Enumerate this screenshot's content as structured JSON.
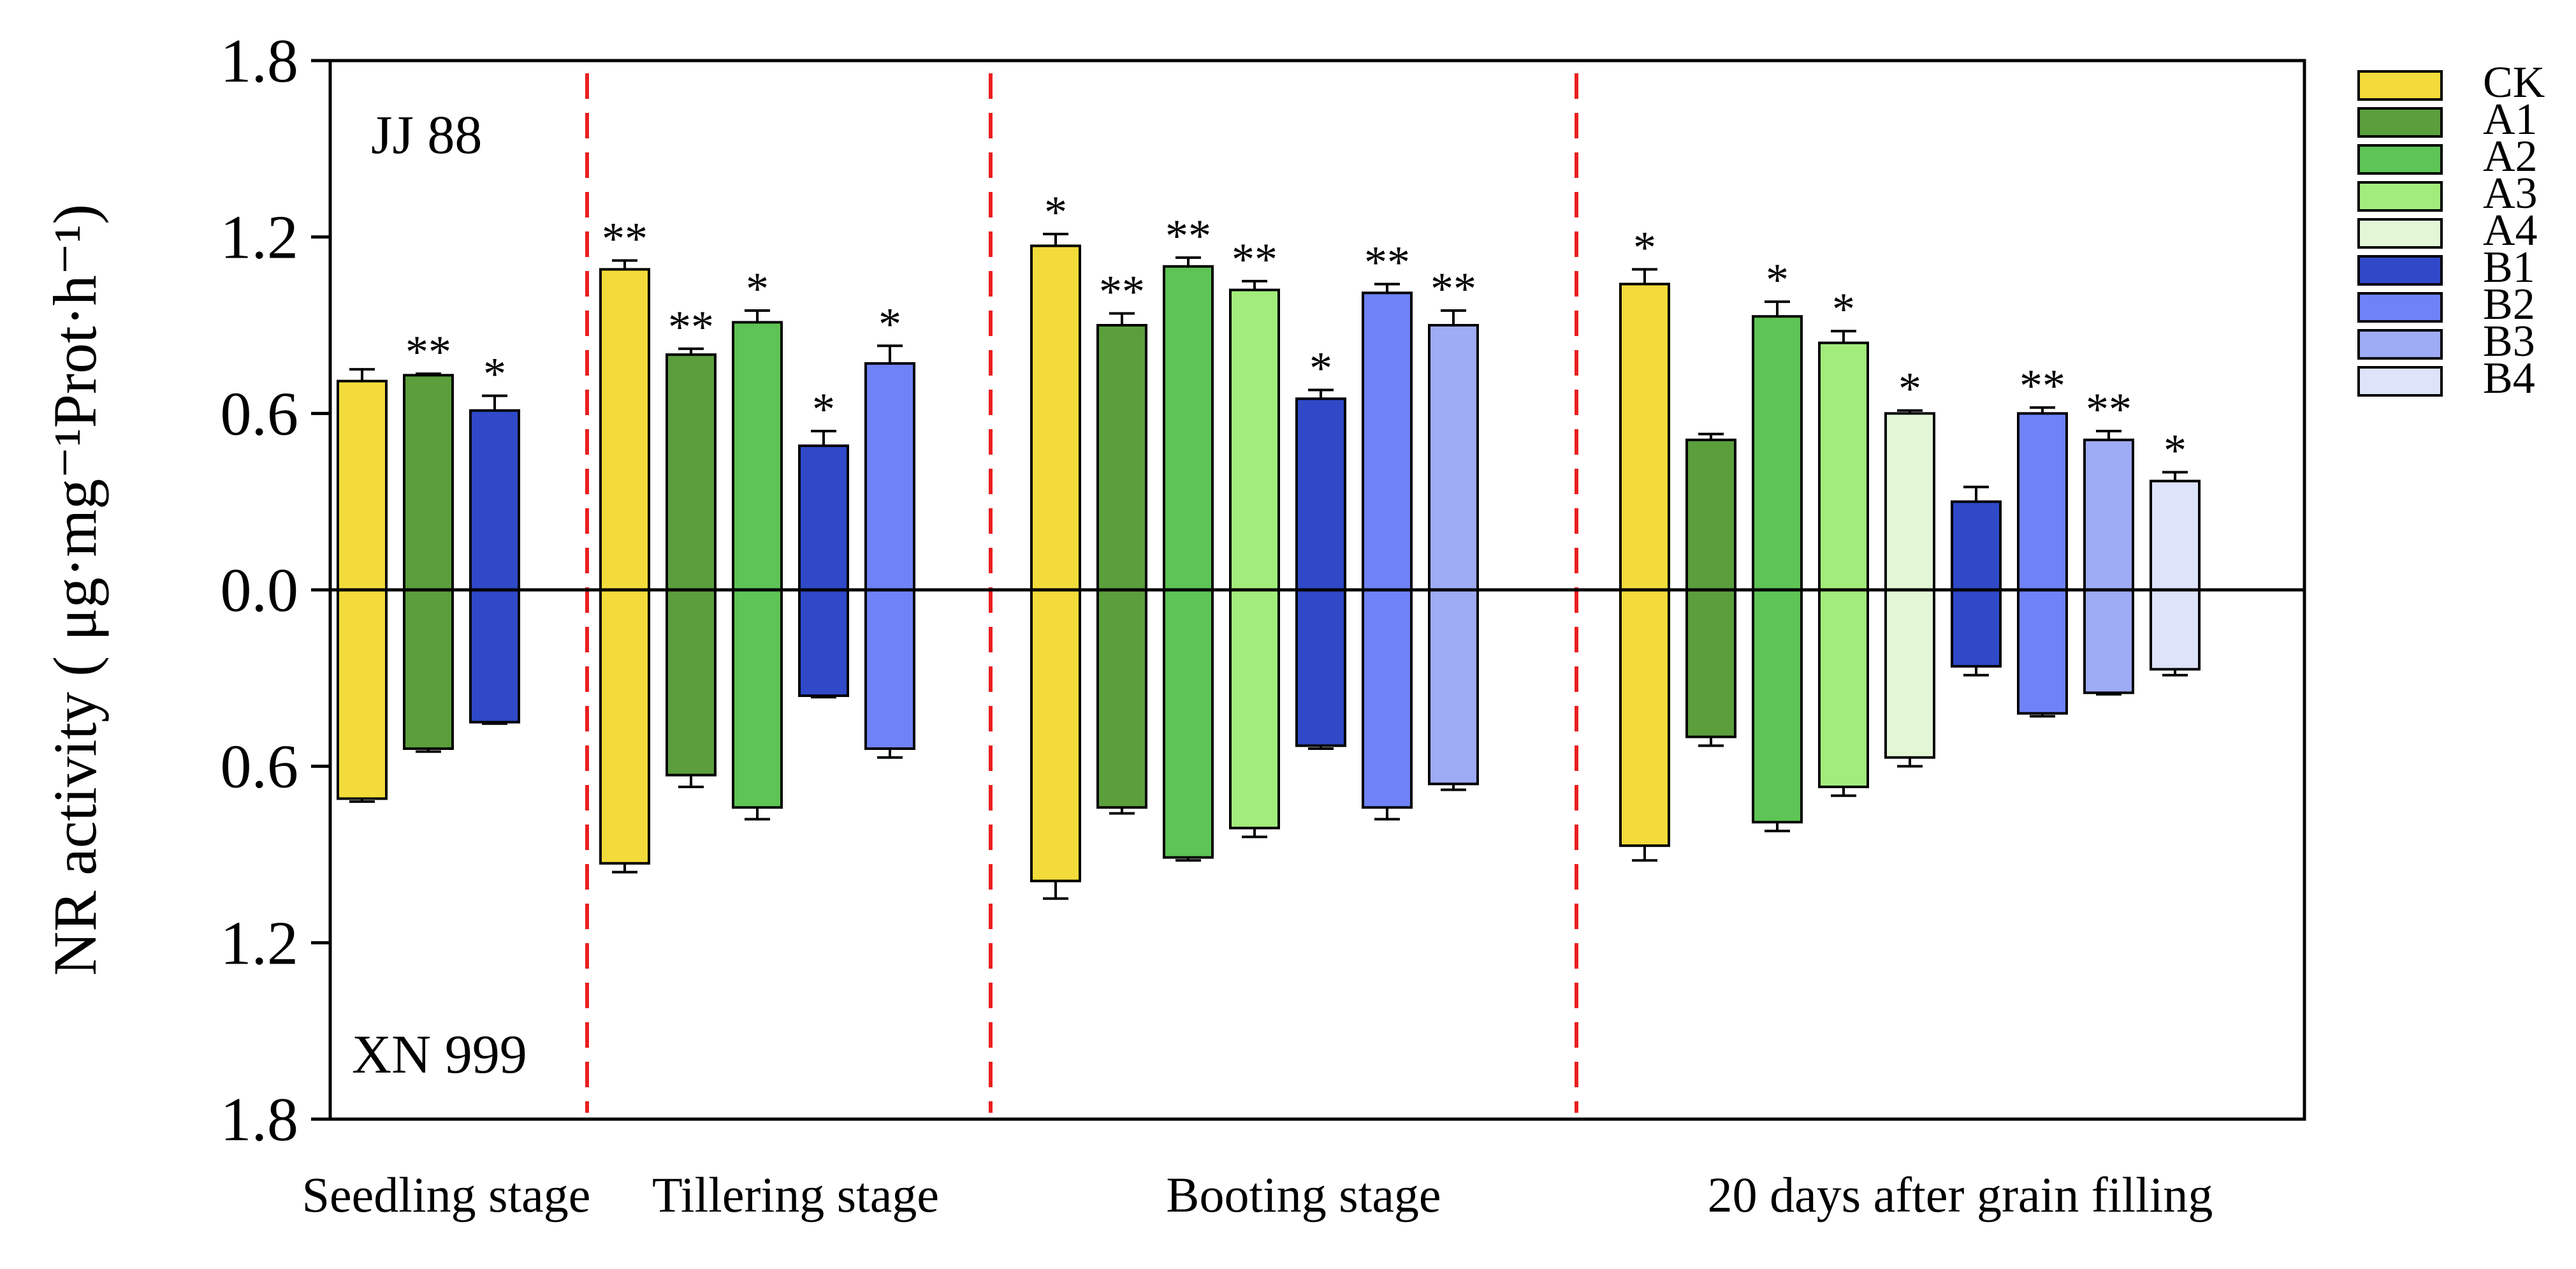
{
  "chart_data": {
    "type": "bar",
    "title": "",
    "ylabel": "NR activity ( μg·mg⁻¹Prot·h⁻¹)",
    "ylim": [
      -1.8,
      1.8
    ],
    "yticks": [
      -1.8,
      -1.2,
      -0.6,
      0.0,
      0.6,
      1.2,
      1.8
    ],
    "ytick_labels": [
      "1.8",
      "1.2",
      "0.6",
      "0.0",
      "0.6",
      "1.2",
      "1.8"
    ],
    "cultivar_top": "JJ 88",
    "cultivar_bottom": "XN 999",
    "legend_position": "right",
    "legend": [
      {
        "name": "CK",
        "color": "#f2db3a"
      },
      {
        "name": "A1",
        "color": "#5b9e3c"
      },
      {
        "name": "A2",
        "color": "#5ec455"
      },
      {
        "name": "A3",
        "color": "#a2ec7c"
      },
      {
        "name": "A4",
        "color": "#e3f7d7"
      },
      {
        "name": "B1",
        "color": "#2f49c8"
      },
      {
        "name": "B2",
        "color": "#6f82f7"
      },
      {
        "name": "B3",
        "color": "#9eabf5"
      },
      {
        "name": "B4",
        "color": "#dde3f8"
      }
    ],
    "stages": [
      {
        "label": "Seedling stage",
        "bars": [
          {
            "treatment": "CK",
            "top": 0.71,
            "top_err": 0.04,
            "top_sig": "",
            "bottom": 0.71,
            "bottom_err": 0.01,
            "bottom_sig": ""
          },
          {
            "treatment": "A1",
            "top": 0.73,
            "top_err": 0.005,
            "top_sig": "**",
            "bottom": 0.54,
            "bottom_err": 0.01,
            "bottom_sig": ""
          },
          {
            "treatment": "B1",
            "top": 0.61,
            "top_err": 0.05,
            "top_sig": "*",
            "bottom": 0.45,
            "bottom_err": 0.005,
            "bottom_sig": ""
          }
        ]
      },
      {
        "label": "Tillering stage",
        "bars": [
          {
            "treatment": "CK",
            "top": 1.09,
            "top_err": 0.03,
            "top_sig": "**",
            "bottom": 0.93,
            "bottom_err": 0.03,
            "bottom_sig": ""
          },
          {
            "treatment": "A1",
            "top": 0.8,
            "top_err": 0.02,
            "top_sig": "**",
            "bottom": 0.63,
            "bottom_err": 0.04,
            "bottom_sig": ""
          },
          {
            "treatment": "A2",
            "top": 0.91,
            "top_err": 0.04,
            "top_sig": "*",
            "bottom": 0.74,
            "bottom_err": 0.04,
            "bottom_sig": ""
          },
          {
            "treatment": "B1",
            "top": 0.49,
            "top_err": 0.05,
            "top_sig": "*",
            "bottom": 0.36,
            "bottom_err": 0.005,
            "bottom_sig": ""
          },
          {
            "treatment": "B2",
            "top": 0.77,
            "top_err": 0.06,
            "top_sig": "*",
            "bottom": 0.54,
            "bottom_err": 0.03,
            "bottom_sig": ""
          }
        ]
      },
      {
        "label": "Booting stage",
        "bars": [
          {
            "treatment": "CK",
            "top": 1.17,
            "top_err": 0.04,
            "top_sig": "*",
            "bottom": 0.99,
            "bottom_err": 0.06,
            "bottom_sig": ""
          },
          {
            "treatment": "A1",
            "top": 0.9,
            "top_err": 0.04,
            "top_sig": "**",
            "bottom": 0.74,
            "bottom_err": 0.02,
            "bottom_sig": ""
          },
          {
            "treatment": "A2",
            "top": 1.1,
            "top_err": 0.03,
            "top_sig": "**",
            "bottom": 0.91,
            "bottom_err": 0.01,
            "bottom_sig": ""
          },
          {
            "treatment": "A3",
            "top": 1.02,
            "top_err": 0.03,
            "top_sig": "**",
            "bottom": 0.81,
            "bottom_err": 0.03,
            "bottom_sig": ""
          },
          {
            "treatment": "B1",
            "top": 0.65,
            "top_err": 0.03,
            "top_sig": "*",
            "bottom": 0.53,
            "bottom_err": 0.01,
            "bottom_sig": ""
          },
          {
            "treatment": "B2",
            "top": 1.01,
            "top_err": 0.03,
            "top_sig": "**",
            "bottom": 0.74,
            "bottom_err": 0.04,
            "bottom_sig": ""
          },
          {
            "treatment": "B3",
            "top": 0.9,
            "top_err": 0.05,
            "top_sig": "**",
            "bottom": 0.66,
            "bottom_err": 0.02,
            "bottom_sig": ""
          }
        ]
      },
      {
        "label": "20 days after grain filling",
        "bars": [
          {
            "treatment": "CK",
            "top": 1.04,
            "top_err": 0.05,
            "top_sig": "*",
            "bottom": 0.87,
            "bottom_err": 0.05,
            "bottom_sig": ""
          },
          {
            "treatment": "A1",
            "top": 0.51,
            "top_err": 0.02,
            "top_sig": "",
            "bottom": 0.5,
            "bottom_err": 0.03,
            "bottom_sig": ""
          },
          {
            "treatment": "A2",
            "top": 0.93,
            "top_err": 0.05,
            "top_sig": "*",
            "bottom": 0.79,
            "bottom_err": 0.03,
            "bottom_sig": ""
          },
          {
            "treatment": "A3",
            "top": 0.84,
            "top_err": 0.04,
            "top_sig": "*",
            "bottom": 0.67,
            "bottom_err": 0.03,
            "bottom_sig": ""
          },
          {
            "treatment": "A4",
            "top": 0.6,
            "top_err": 0.01,
            "top_sig": "*",
            "bottom": 0.57,
            "bottom_err": 0.03,
            "bottom_sig": ""
          },
          {
            "treatment": "B1",
            "top": 0.3,
            "top_err": 0.05,
            "top_sig": "",
            "bottom": 0.26,
            "bottom_err": 0.03,
            "bottom_sig": ""
          },
          {
            "treatment": "B2",
            "top": 0.6,
            "top_err": 0.02,
            "top_sig": "**",
            "bottom": 0.42,
            "bottom_err": 0.01,
            "bottom_sig": ""
          },
          {
            "treatment": "B3",
            "top": 0.51,
            "top_err": 0.03,
            "top_sig": "**",
            "bottom": 0.35,
            "bottom_err": 0.005,
            "bottom_sig": ""
          },
          {
            "treatment": "B4",
            "top": 0.37,
            "top_err": 0.03,
            "top_sig": "*",
            "bottom": 0.27,
            "bottom_err": 0.02,
            "bottom_sig": ""
          }
        ]
      }
    ]
  }
}
